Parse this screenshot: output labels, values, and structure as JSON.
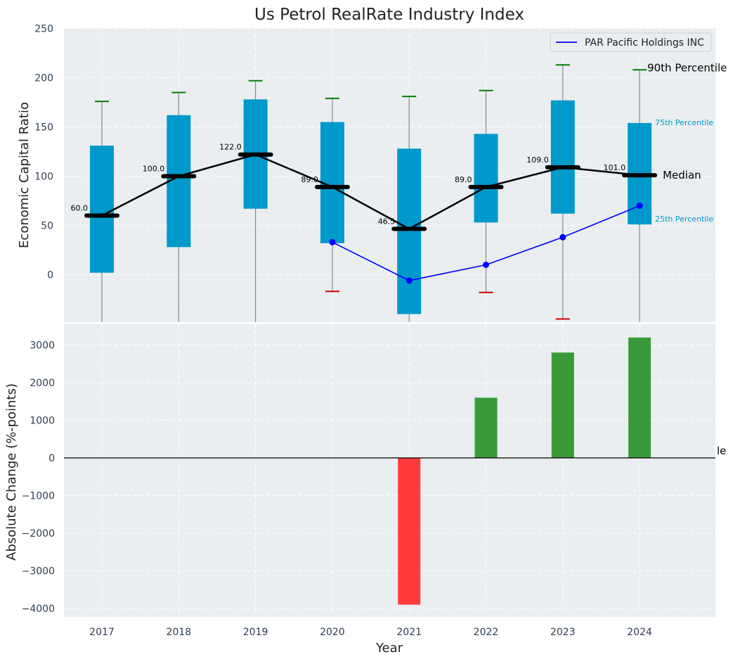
{
  "chart_data": [
    {
      "type": "box",
      "title": "Us Petrol RealRate Industry Index",
      "ylabel": "Economic Capital Ratio",
      "ylim": [
        -50,
        250
      ],
      "yticks": [
        0,
        50,
        100,
        150,
        200,
        250
      ],
      "categories": [
        "2017",
        "2018",
        "2019",
        "2020",
        "2021",
        "2022",
        "2023",
        "2024"
      ],
      "grid": true,
      "legend_position": "top-right",
      "boxes": {
        "q1": [
          2,
          28,
          67,
          32,
          -40,
          53,
          62,
          51
        ],
        "q3": [
          131,
          162,
          178,
          155,
          128,
          143,
          177,
          154
        ],
        "p90": [
          176,
          185,
          197,
          179,
          181,
          187,
          213,
          208
        ],
        "p10": [
          null,
          null,
          null,
          -17,
          null,
          -18,
          -45,
          null
        ]
      },
      "median": {
        "values": [
          60.0,
          100.0,
          122.0,
          89.0,
          46.5,
          89.0,
          109.0,
          101.0
        ],
        "labels": [
          "60.0",
          "100.0",
          "122.0",
          "89.0",
          "46.5",
          "89.0",
          "109.0",
          "101.0"
        ]
      },
      "series": [
        {
          "name": "PAR Pacific Holdings INC",
          "color": "#0000ff",
          "x": [
            "2020",
            "2021",
            "2022",
            "2023",
            "2024"
          ],
          "values": [
            33,
            -6,
            10,
            38,
            70
          ]
        }
      ],
      "annotations": {
        "p90": "90th Percentile",
        "p75": "75th Percentile",
        "median": "Median",
        "p25": "25th Percentile"
      },
      "colors": {
        "box": "#0099cc",
        "median_line": "#000000",
        "p90_cap": "#008000",
        "p10_cap": "#d40000",
        "company_line": "#0000ff"
      }
    },
    {
      "type": "bar",
      "xlabel": "Year",
      "ylabel": "Absolute Change (%-points)",
      "ylim": [
        -4200,
        3600
      ],
      "yticks": [
        -4000,
        -3000,
        -2000,
        -1000,
        0,
        1000,
        2000,
        3000
      ],
      "categories": [
        "2017",
        "2018",
        "2019",
        "2020",
        "2021",
        "2022",
        "2023",
        "2024"
      ],
      "values": [
        null,
        null,
        null,
        null,
        -3900,
        1600,
        2800,
        3200
      ],
      "clipped_annotation": "le",
      "colors": {
        "positive": "#3a9a3a",
        "negative": "#ff3b3b"
      }
    }
  ]
}
